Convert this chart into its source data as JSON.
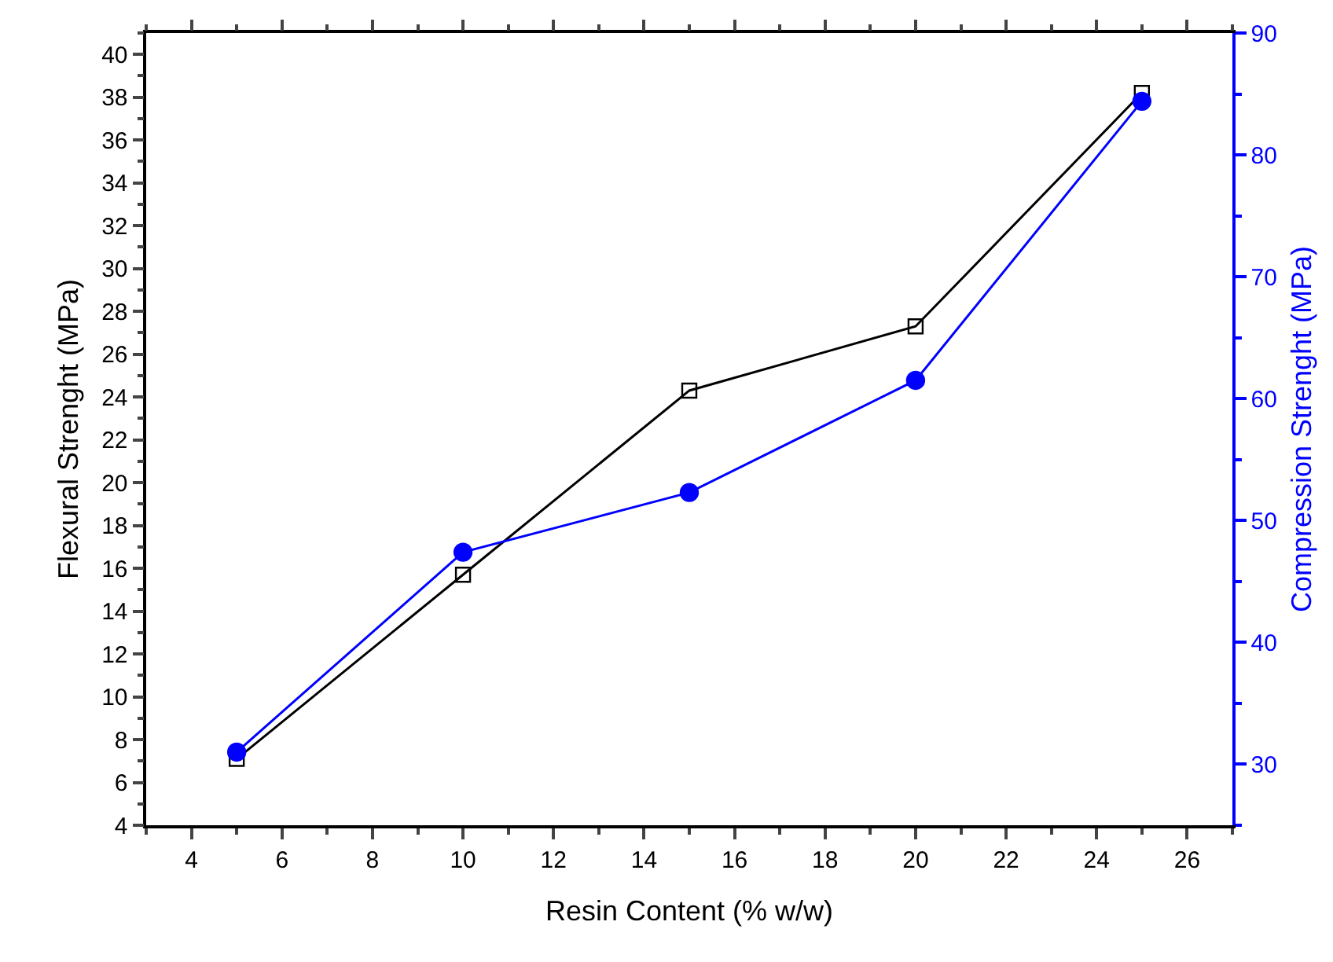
{
  "chart_data": {
    "type": "line",
    "xlabel": "Resin Content (% w/w)",
    "ylabel": "Flexural Strenght (MPa)",
    "y2label": "Compression Strenght (MPa)",
    "x": [
      5,
      10,
      15,
      20,
      25
    ],
    "series": [
      {
        "color": "#000000",
        "marker": "square",
        "values": [
          7.1,
          15.7,
          24.3,
          27.3,
          38.2
        ]
      },
      {
        "color": "#0000ff",
        "marker": "circle",
        "axis": "y2",
        "values": [
          31.0,
          47.4,
          52.3,
          61.5,
          84.4
        ]
      }
    ],
    "xlim": [
      3,
      27
    ],
    "xticks": [
      4,
      6,
      8,
      10,
      12,
      14,
      16,
      18,
      20,
      22,
      24,
      26
    ],
    "ylim": [
      4,
      41
    ],
    "yticks": [
      4,
      6,
      8,
      10,
      12,
      14,
      16,
      18,
      20,
      22,
      24,
      26,
      28,
      30,
      32,
      34,
      36,
      38,
      40
    ],
    "y2lim": [
      25,
      90
    ],
    "y2ticks": [
      30,
      40,
      50,
      60,
      70,
      80,
      90
    ],
    "line_style": "solid"
  }
}
